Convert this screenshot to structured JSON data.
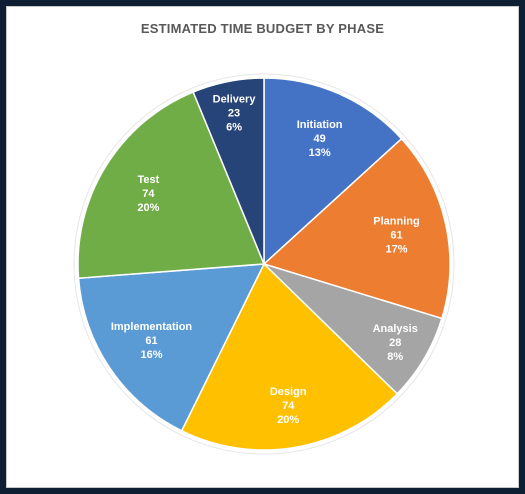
{
  "chart_data": {
    "type": "pie",
    "title": "ESTIMATED TIME BUDGET BY PHASE",
    "categories": [
      "Initiation",
      "Planning",
      "Analysis",
      "Design",
      "Implementation",
      "Test",
      "Delivery"
    ],
    "values": [
      49,
      61,
      28,
      74,
      61,
      74,
      23
    ],
    "percent_labels": [
      "13%",
      "17%",
      "8%",
      "20%",
      "16%",
      "20%",
      "6%"
    ],
    "colors": [
      "#4472c4",
      "#ed7d31",
      "#a5a5a5",
      "#ffc000",
      "#5b9bd5",
      "#70ad47",
      "#264478"
    ],
    "start_angle": "12 o'clock",
    "direction": "clockwise",
    "legend": "none"
  }
}
